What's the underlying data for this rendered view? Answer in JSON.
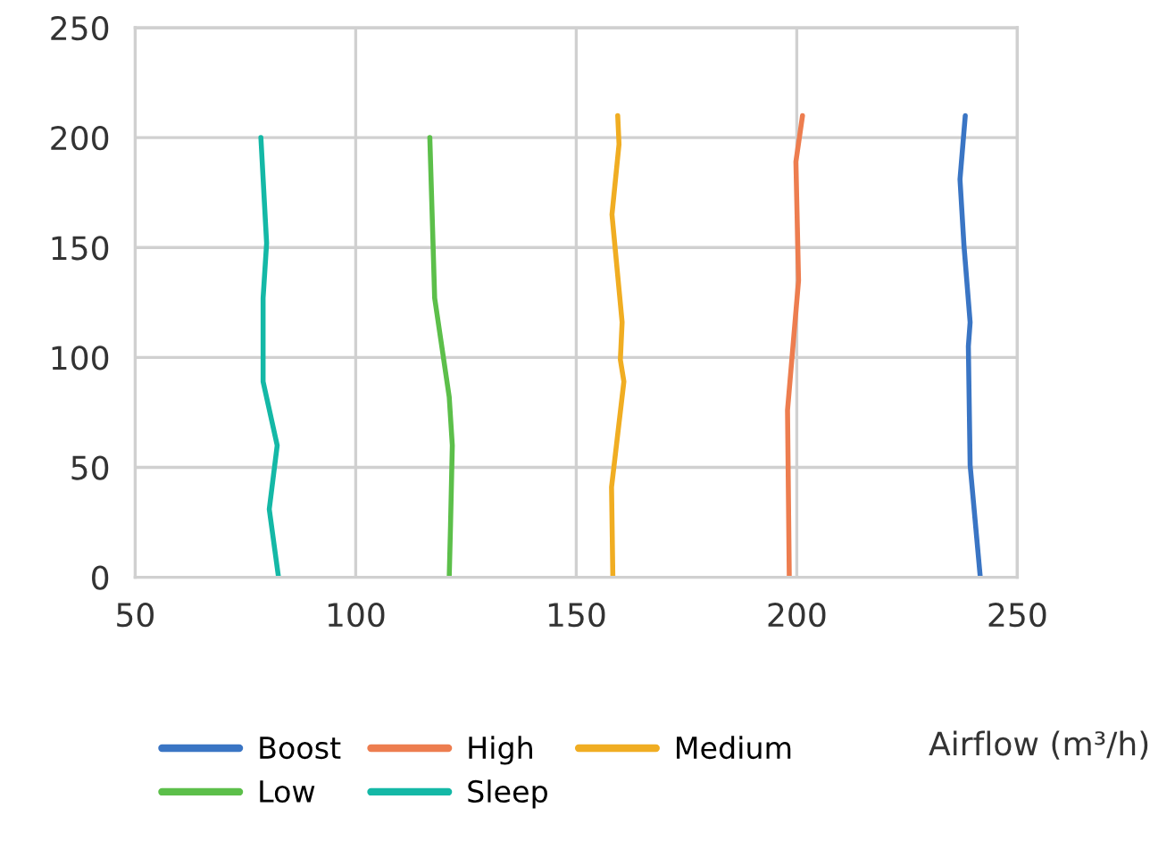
{
  "chart_data": {
    "type": "line",
    "xlabel": "Airflow (m³/h)",
    "xlim": [
      50,
      250
    ],
    "xticks": [
      50,
      100,
      150,
      200,
      250
    ],
    "ylim": [
      0,
      250
    ],
    "yticks": [
      0,
      50,
      100,
      150,
      200,
      250
    ],
    "grid": true,
    "legend": "bottom",
    "marker": "none",
    "line_style": "solid",
    "series": [
      {
        "name": "Boost",
        "color": "#3a75c4",
        "x": [
          241.6,
          239.3,
          238.9,
          239.3,
          237.9,
          237.0,
          238.2
        ],
        "values": [
          0,
          51,
          105,
          116,
          151,
          181,
          210
        ]
      },
      {
        "name": "High",
        "color": "#ed7d4f",
        "x": [
          198.3,
          197.9,
          200.4,
          199.8,
          201.3
        ],
        "values": [
          0,
          76,
          135,
          189,
          210
        ]
      },
      {
        "name": "Medium",
        "color": "#f0ad22",
        "x": [
          158.3,
          158.0,
          160.8,
          160.0,
          160.4,
          158.1,
          159.7,
          159.4
        ],
        "values": [
          0,
          41,
          89,
          99,
          116,
          165,
          197,
          210
        ]
      },
      {
        "name": "Low",
        "color": "#5cbf4a",
        "x": [
          121.2,
          121.5,
          121.9,
          121.2,
          117.9,
          116.8
        ],
        "values": [
          0,
          24,
          60,
          82,
          127,
          200
        ]
      },
      {
        "name": "Sleep",
        "color": "#14b8a6",
        "x": [
          82.5,
          80.4,
          82.2,
          79.0,
          79.0,
          79.8,
          78.5
        ],
        "values": [
          0,
          31,
          60,
          89,
          127,
          152,
          200
        ]
      }
    ]
  }
}
